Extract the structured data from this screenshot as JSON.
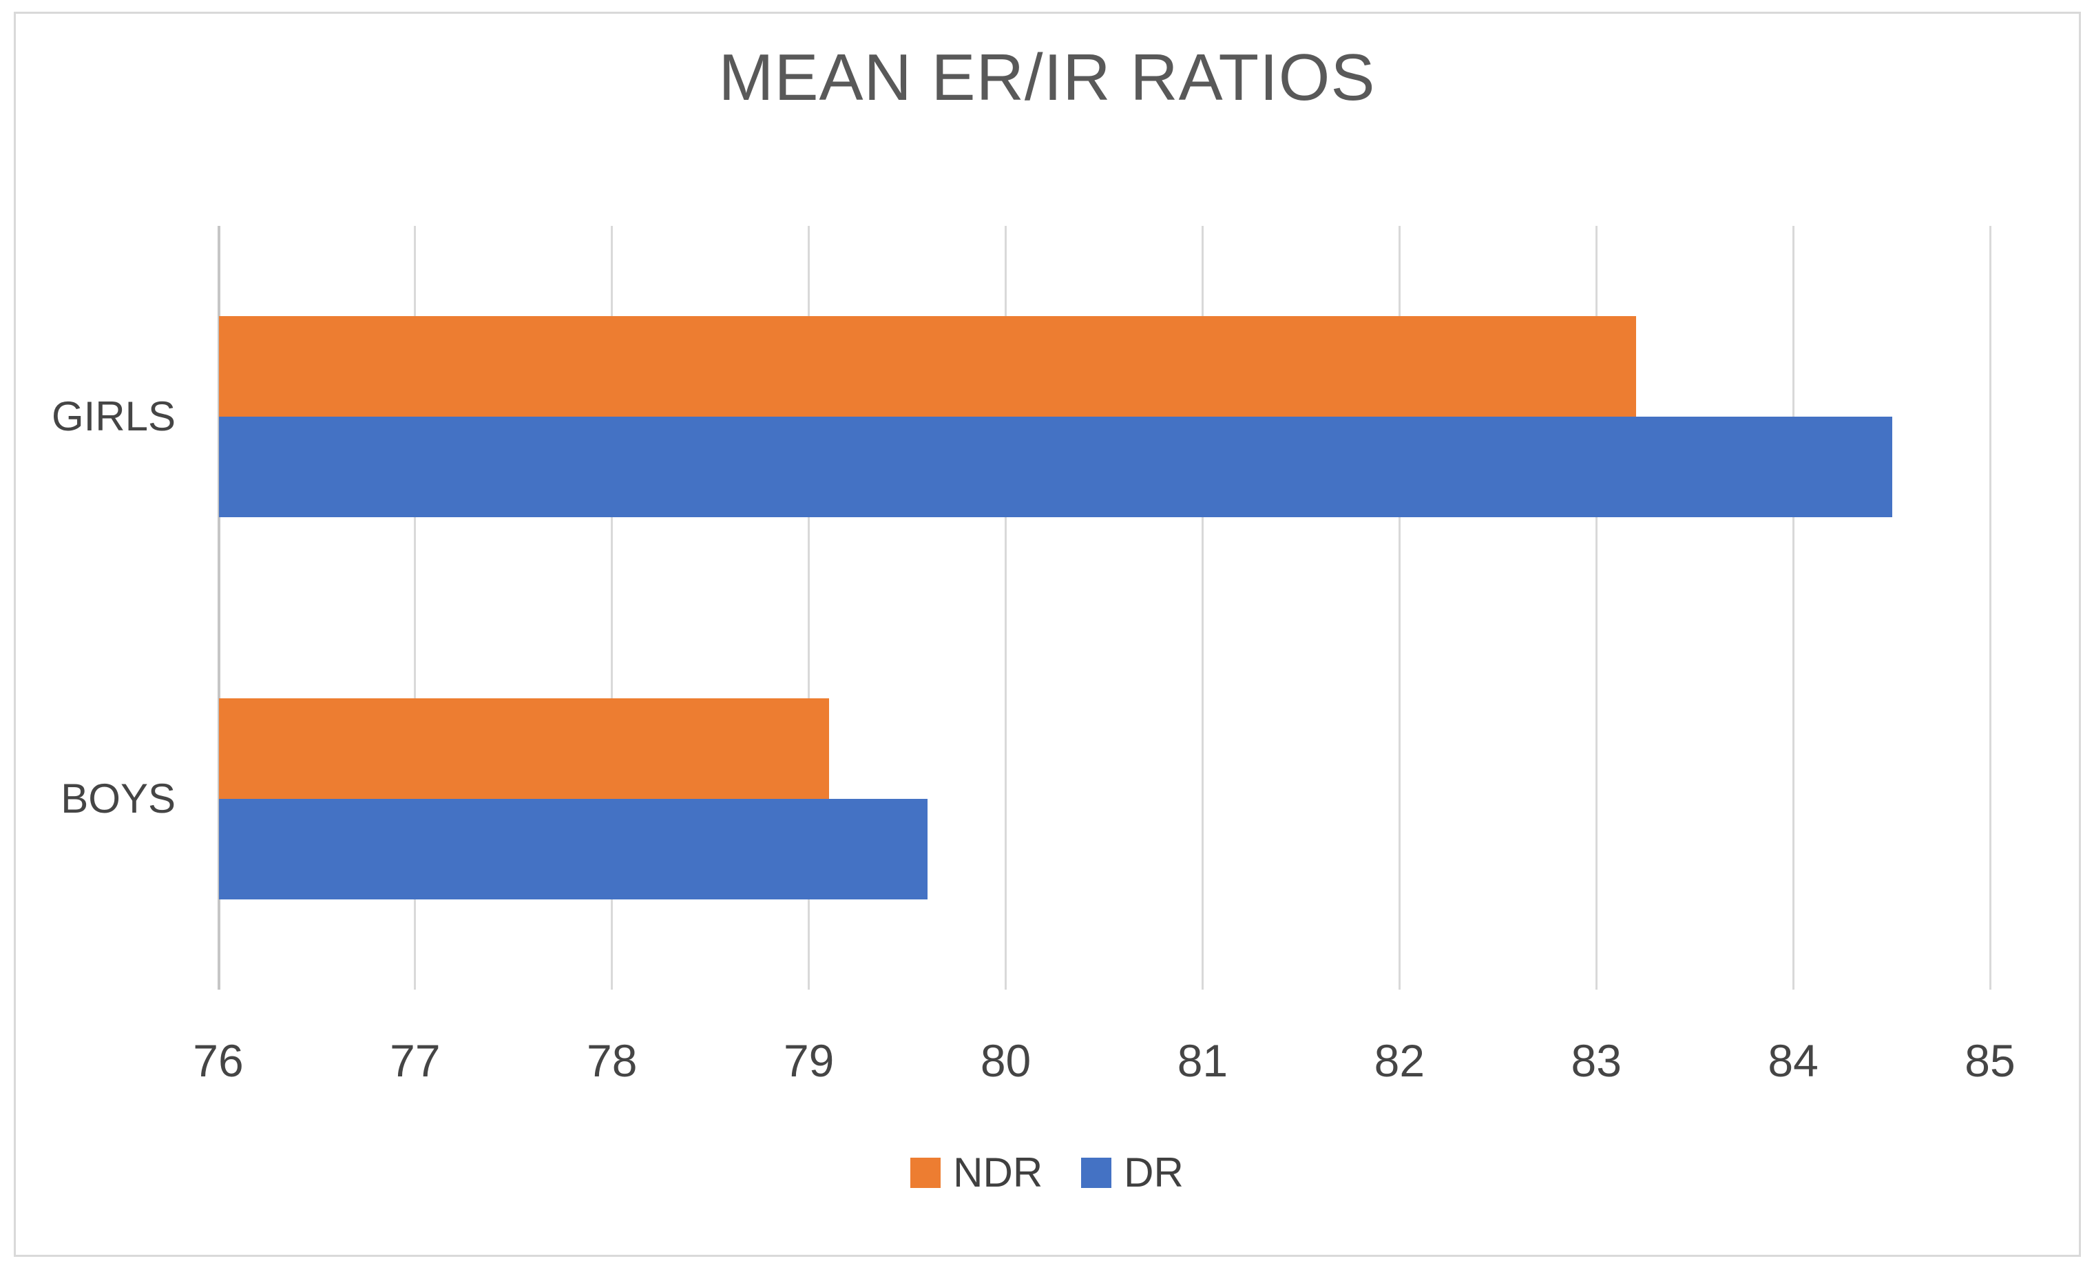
{
  "window": {
    "background": "#FFFFFF",
    "border_color": "#D9D9D9"
  },
  "chart_data": {
    "type": "bar",
    "orientation": "horizontal",
    "title": "MEAN ER/IR RATIOS",
    "categories": [
      "GIRLS",
      "BOYS"
    ],
    "series": [
      {
        "name": "NDR",
        "color": "#ED7D31",
        "values": [
          83.2,
          79.1
        ]
      },
      {
        "name": "DR",
        "color": "#4472C4",
        "values": [
          84.5,
          79.6
        ]
      }
    ],
    "xlim": [
      76,
      85
    ],
    "xticks": [
      76,
      77,
      78,
      79,
      80,
      81,
      82,
      83,
      84,
      85
    ],
    "grid": true,
    "legend_position": "bottom",
    "text_colors": {
      "title": "#595959",
      "axis_labels": "#454545",
      "legend": "#404040"
    },
    "line_colors": {
      "gridline": "#D9D9D9",
      "axis": "#C6C6C6"
    }
  }
}
